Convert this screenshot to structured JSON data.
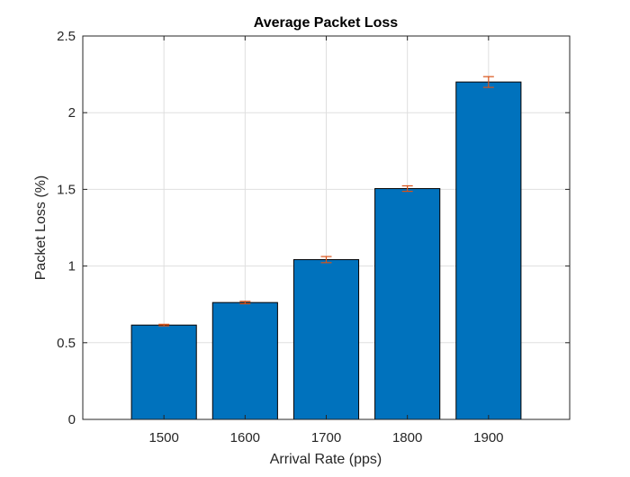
{
  "chart_data": {
    "type": "bar",
    "title": "Average Packet Loss",
    "xlabel": "Arrival Rate (pps)",
    "ylabel": "Packet Loss (%)",
    "categories": [
      "1500",
      "1600",
      "1700",
      "1800",
      "1900"
    ],
    "values": [
      0.615,
      0.762,
      1.042,
      1.505,
      2.2
    ],
    "error": [
      0.005,
      0.008,
      0.02,
      0.018,
      0.035
    ],
    "ylim": [
      0,
      2.5
    ],
    "yticks": [
      "0",
      "0.5",
      "1",
      "1.5",
      "2",
      "2.5"
    ],
    "grid": true,
    "colors": {
      "bar": "#0072BD",
      "errorbar": "#D95319"
    }
  }
}
